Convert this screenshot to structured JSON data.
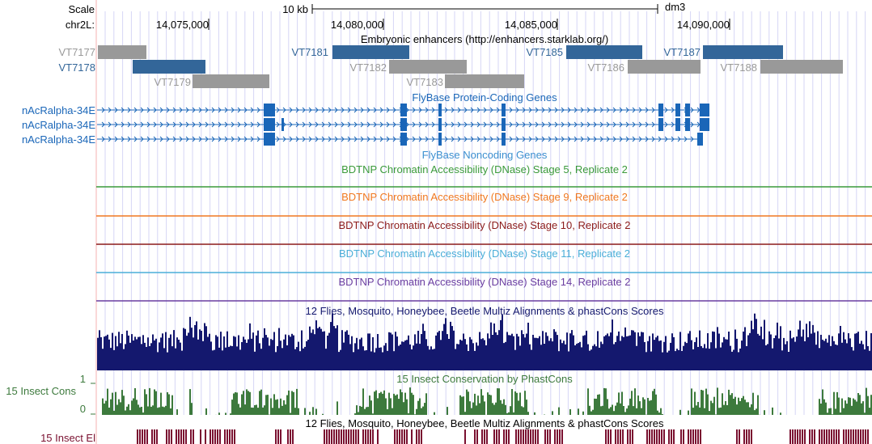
{
  "header": {
    "scale_label": "Scale",
    "scale_bar_text": "10 kb",
    "assembly": "dm3",
    "chrom_label": "chr2L:",
    "coords": [
      "14,075,000",
      "14,080,000",
      "14,085,000",
      "14,090,000"
    ]
  },
  "enhancers": {
    "title": "Embryonic enhancers (http://enhancers.starklab.org/)",
    "items": [
      {
        "name": "VT7177",
        "color": "#999999"
      },
      {
        "name": "VT7178",
        "color": "#336699"
      },
      {
        "name": "VT7179",
        "color": "#999999"
      },
      {
        "name": "VT7181",
        "color": "#336699"
      },
      {
        "name": "VT7182",
        "color": "#999999"
      },
      {
        "name": "VT7183",
        "color": "#999999"
      },
      {
        "name": "VT7185",
        "color": "#336699"
      },
      {
        "name": "VT7186",
        "color": "#999999"
      },
      {
        "name": "VT7187",
        "color": "#336699"
      },
      {
        "name": "VT7188",
        "color": "#999999"
      }
    ]
  },
  "genes": {
    "title": "FlyBase Protein-Coding Genes",
    "color": "#1a66b8",
    "transcripts": [
      "nAcRalpha-34E",
      "nAcRalpha-34E",
      "nAcRalpha-34E"
    ]
  },
  "noncoding": {
    "title": "FlyBase Noncoding Genes",
    "color": "#3c8fd0"
  },
  "dnase_tracks": [
    {
      "title": "BDTNP Chromatin Accessibility (DNase) Stage 5, Replicate 2",
      "color": "#3a9a3a"
    },
    {
      "title": "BDTNP Chromatin Accessibility (DNase) Stage 9, Replicate 2",
      "color": "#f07820"
    },
    {
      "title": "BDTNP Chromatin Accessibility (DNase) Stage 10, Replicate 2",
      "color": "#8b1a1a"
    },
    {
      "title": "BDTNP Chromatin Accessibility (DNase) Stage 11, Replicate 2",
      "color": "#4aaed8"
    },
    {
      "title": "BDTNP Chromatin Accessibility (DNase) Stage 14, Replicate 2",
      "color": "#6a3da0"
    }
  ],
  "multiz": {
    "title": "12 Flies, Mosquito, Honeybee, Beetle Multiz Alignments & phastCons Scores",
    "color": "#14186e"
  },
  "conservation": {
    "title": "15 Insect Conservation by PhastCons",
    "label": "15 Insect Cons",
    "axis_top": "1",
    "axis_bottom": "0",
    "color": "#3d7a3d"
  },
  "elements": {
    "title": "12 Flies, Mosquito, Honeybee, Beetle Multiz Alignments & phastCons Scores",
    "label": "15 Insect El",
    "color": "#7a1030"
  }
}
